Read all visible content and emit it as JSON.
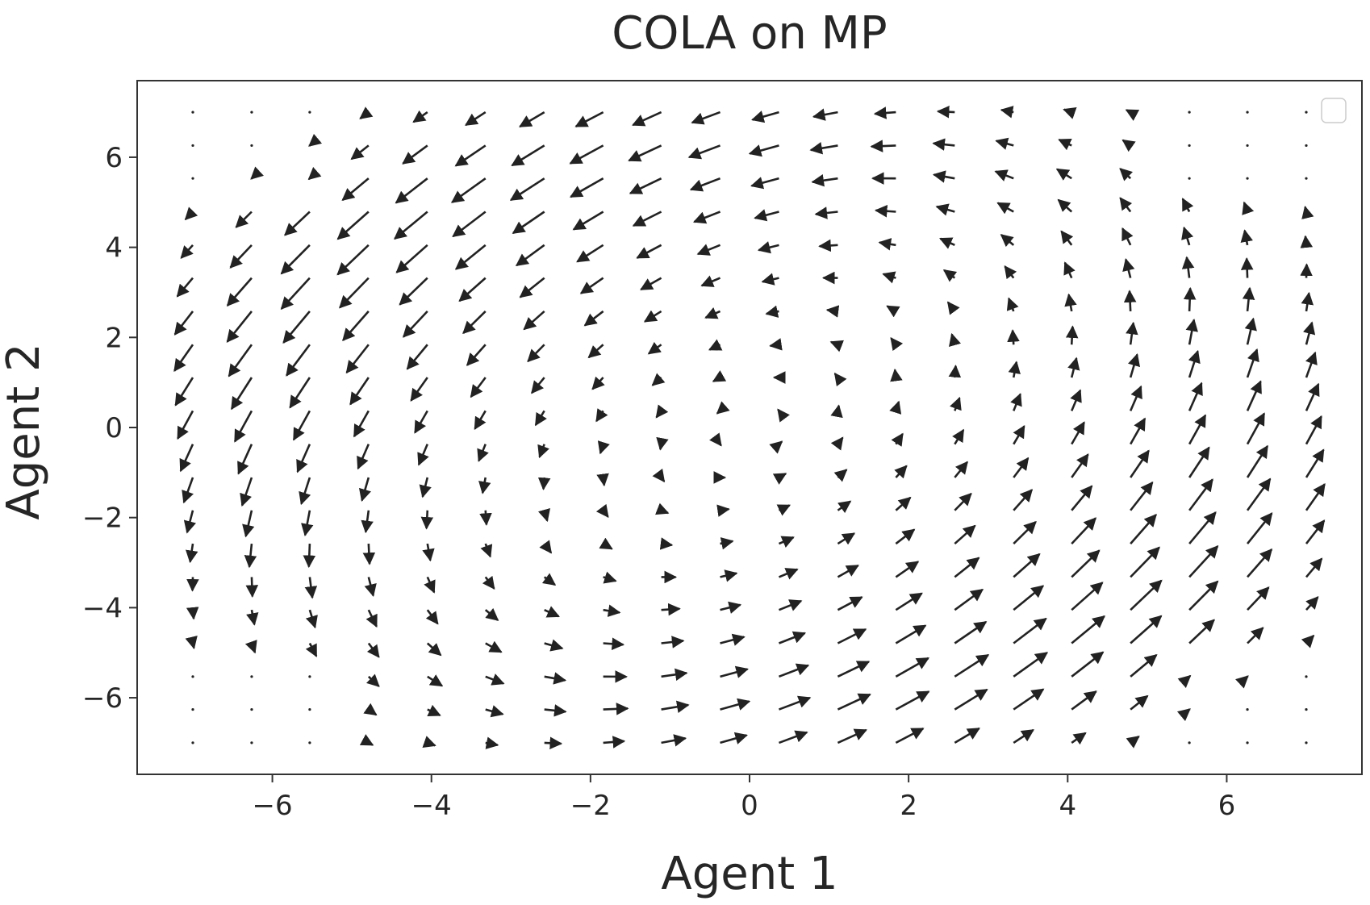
{
  "chart_data": {
    "type": "quiver",
    "title": "COLA on MP",
    "xlabel": "Agent 1",
    "ylabel": "Agent 2",
    "xlim": [
      -7.7,
      7.7
    ],
    "ylim": [
      -7.7,
      7.7
    ],
    "xticks": [
      -6,
      -4,
      -2,
      0,
      2,
      4,
      6
    ],
    "xtick_labels": [
      "−6",
      "−4",
      "−2",
      "0",
      "2",
      "4",
      "6"
    ],
    "yticks": [
      -6,
      -4,
      -2,
      0,
      2,
      4,
      6
    ],
    "ytick_labels": [
      "−6",
      "−4",
      "−2",
      "0",
      "2",
      "4",
      "6"
    ],
    "grid": false,
    "legend": {
      "placement": "top-right",
      "entries": []
    },
    "grid_points": {
      "x": [
        -7.0,
        -6.26,
        -5.53,
        -4.79,
        -4.05,
        -3.32,
        -2.58,
        -1.84,
        -1.11,
        -0.37,
        0.37,
        1.11,
        1.84,
        2.58,
        3.32,
        4.05,
        4.79,
        5.53,
        6.26,
        7.0
      ],
      "y": [
        -7.0,
        -6.26,
        -5.53,
        -4.79,
        -4.05,
        -3.32,
        -2.58,
        -1.84,
        -1.11,
        -0.37,
        0.37,
        1.11,
        1.84,
        2.58,
        3.32,
        4.05,
        4.79,
        5.53,
        6.26,
        7.0
      ]
    },
    "vector_field": "u = -(y - x/2) * w(r), v = (x - y/3) * w(r); magnitudes shrink to dots near the corners",
    "arrow_color": "#222222"
  },
  "legend_box": ""
}
